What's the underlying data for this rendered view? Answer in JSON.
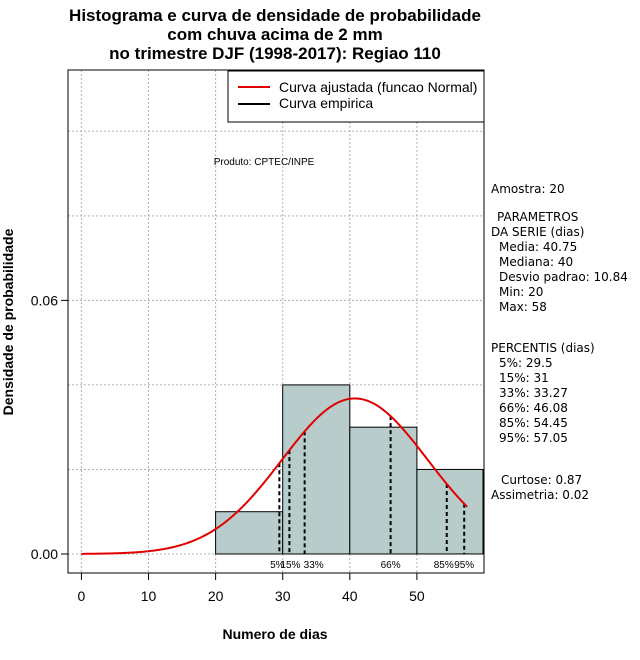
{
  "chart_data": {
    "type": "histogram",
    "title": [
      "Histograma e curva de densidade de probabilidade",
      "com chuva acima de 2 mm",
      "no trimestre DJF (1998-2017): Regiao 110"
    ],
    "xlabel": "Numero de dias",
    "ylabel": "Densidade de probabilidade",
    "xlim": [
      -2,
      60
    ],
    "ylim": [
      -0.0045,
      0.1145
    ],
    "x_ticks": [
      0,
      10,
      20,
      30,
      40,
      50
    ],
    "x_tick_labels": [
      "0",
      "10",
      "20",
      "30",
      "40",
      "50"
    ],
    "y_ticks": [
      0.0,
      0.06
    ],
    "y_tick_labels": [
      "0.00",
      "0.06"
    ],
    "grid_x": [
      0,
      10,
      20,
      30,
      40,
      50
    ],
    "grid_y": [
      0.0,
      0.02,
      0.04,
      0.06,
      0.08,
      0.1
    ],
    "bins": [
      {
        "start": 20,
        "end": 30,
        "density": 0.01
      },
      {
        "start": 30,
        "end": 40,
        "density": 0.04
      },
      {
        "start": 40,
        "end": 50,
        "density": 0.03
      },
      {
        "start": 50,
        "end": 60,
        "density": 0.02
      }
    ],
    "fit_curve": {
      "name": "Curva ajustada (funcao Normal)",
      "distribution": "normal",
      "mean": 40.75,
      "sd": 10.84,
      "x_range": [
        0,
        57.5
      ],
      "color": "#e00000"
    },
    "empirical_curve": {
      "name": "Curva empirica",
      "color": "#000000"
    },
    "percentiles": [
      {
        "label": "5%",
        "value": 29.5
      },
      {
        "label": "15%",
        "value": 31
      },
      {
        "label": "33%",
        "value": 33.27
      },
      {
        "label": "66%",
        "value": 46.08
      },
      {
        "label": "85%",
        "value": 54.45
      },
      {
        "label": "95%",
        "value": 57.05
      }
    ],
    "bar_color": "#b8cccc",
    "legend": {
      "position": "top-right",
      "entries": [
        "Curva ajustada (funcao Normal)",
        "Curva empirica"
      ]
    },
    "annotation": "Produto: CPTEC/INPE"
  },
  "stats_panel": {
    "amostra": "Amostra: 20",
    "param_title_1": "PARAMETROS",
    "param_title_2": "DA SERIE (dias)",
    "media": "Media: 40.75",
    "mediana": "Mediana: 40",
    "desvio": "Desvio padrao: 10.84",
    "min": "Min: 20",
    "max": "Max: 58",
    "percentis_title": "PERCENTIS (dias)",
    "p5": "5%: 29.5",
    "p15": "15%: 31",
    "p33": "33%: 33.27",
    "p66": "66%: 46.08",
    "p85": "85%: 54.45",
    "p95": "95%: 57.05",
    "curtose": "Curtose: 0.87",
    "assimetria": "Assimetria: 0.02"
  }
}
